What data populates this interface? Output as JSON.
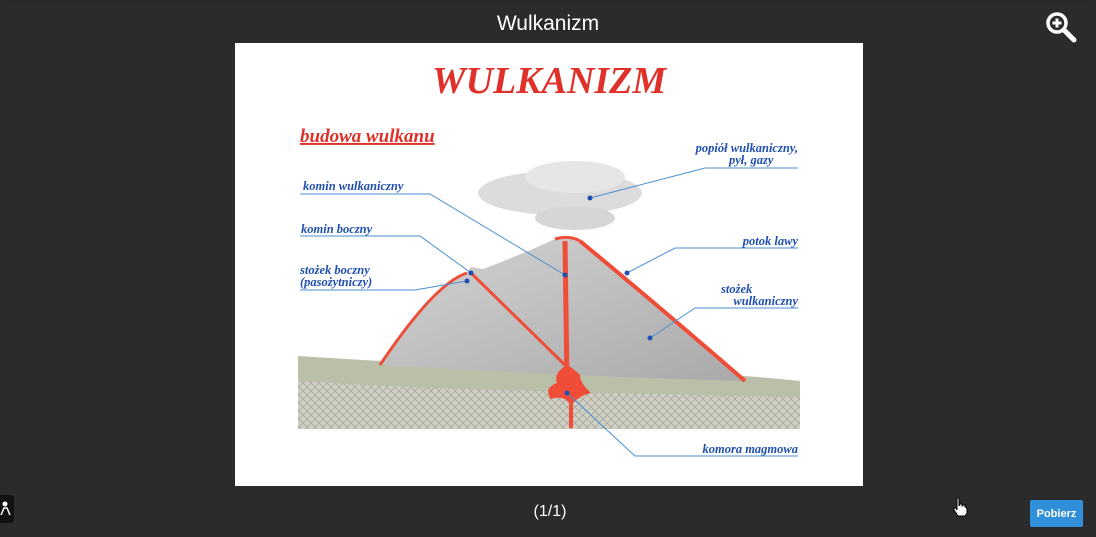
{
  "header": {
    "title": "Wulkanizm"
  },
  "icons": {
    "zoom": "zoom-in-icon",
    "cursor": "hand-pointer-icon",
    "side": "person-icon"
  },
  "slide": {
    "title": "WULKANIZM",
    "subtitle": "budowa wulkanu",
    "labels": {
      "ash": [
        "popiół wulkaniczny,",
        "pył, gazy"
      ],
      "main_vent": "komin wulkaniczny",
      "side_vent": "komin boczny",
      "parasitic_cone": [
        "stożek boczny",
        "(pasożytniczy)"
      ],
      "lava_flow": "potok lawy",
      "volcanic_cone": [
        "stożek",
        "wulkaniczny"
      ],
      "magma_chamber": "komora magmowa"
    },
    "colors": {
      "title_red": "#e0302a",
      "label_blue": "#1f4fb0",
      "lava": "#ef4d37",
      "cone": "#b8b8b8"
    }
  },
  "footer": {
    "pager": "(1/1)",
    "download_label": "Pobierz"
  }
}
